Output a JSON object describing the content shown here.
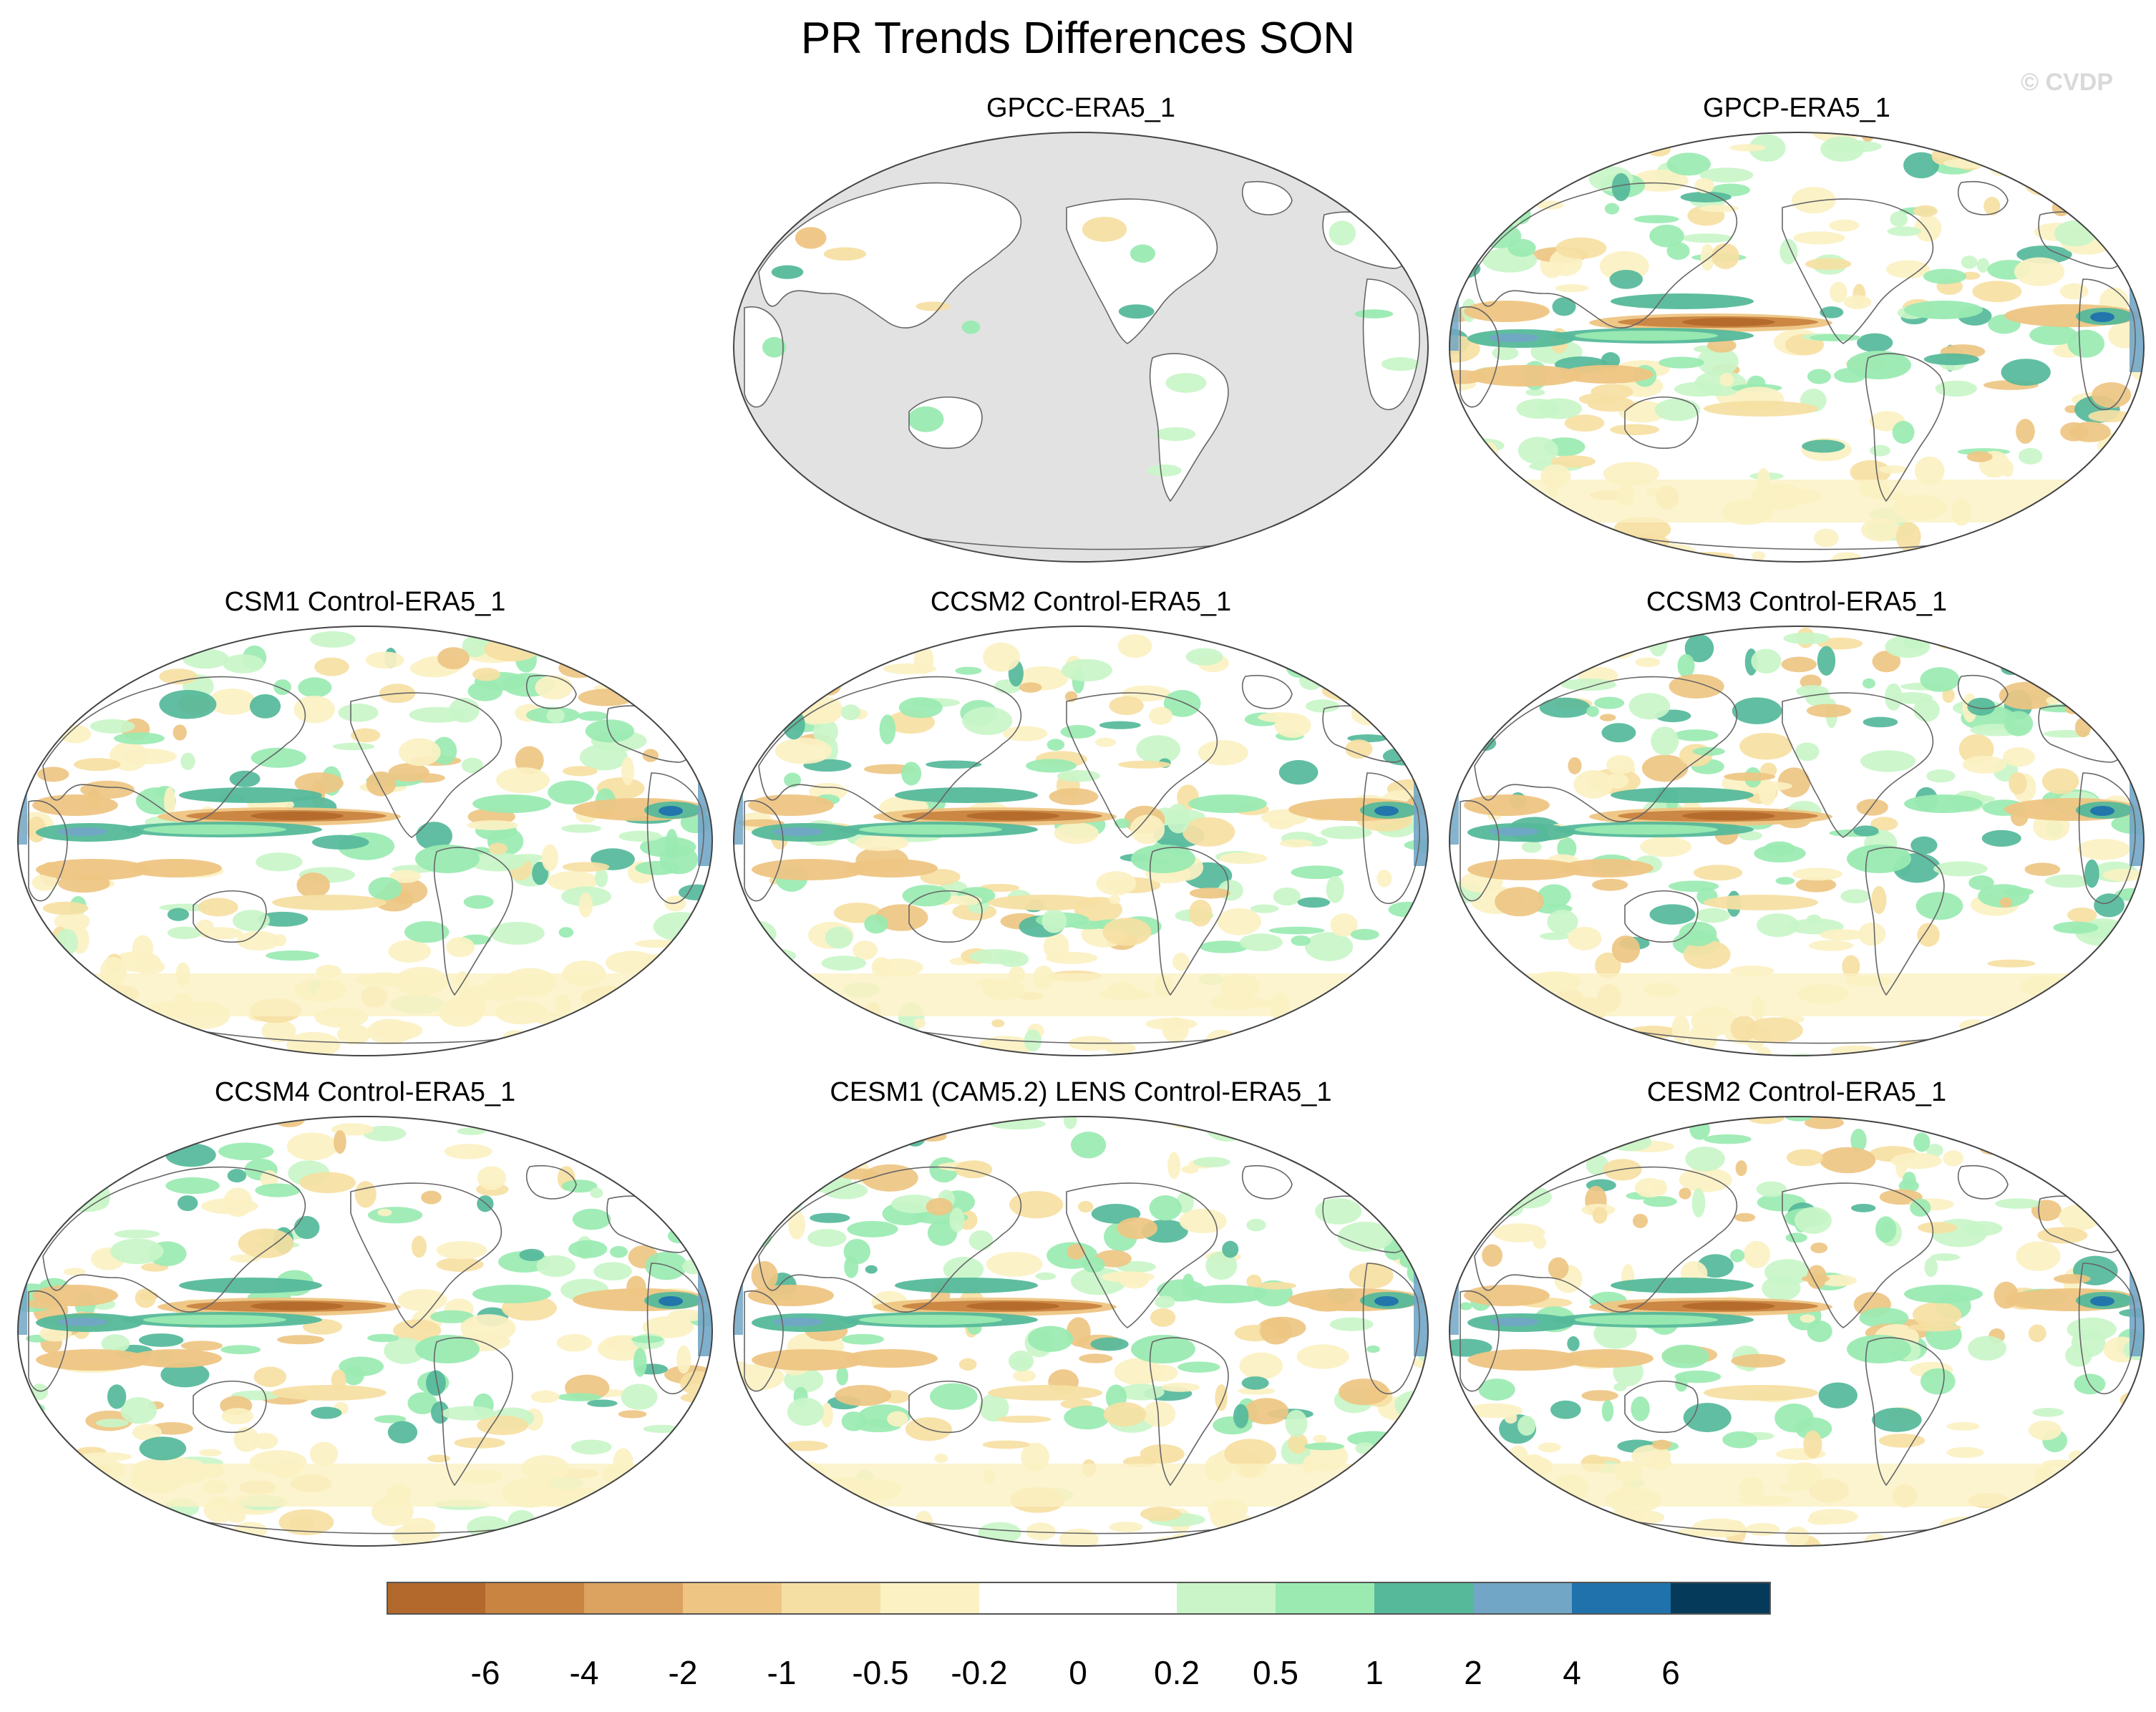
{
  "title": "PR Trends Differences SON",
  "credit": "© CVDP",
  "panels": [
    {
      "id": "gpcc",
      "title": "GPCC-ERA5_1",
      "row": 0,
      "col": 1,
      "land_only": true
    },
    {
      "id": "gpcp",
      "title": "GPCP-ERA5_1",
      "row": 0,
      "col": 2,
      "land_only": false
    },
    {
      "id": "csm1",
      "title": "CSM1 Control-ERA5_1",
      "row": 1,
      "col": 0,
      "land_only": false
    },
    {
      "id": "ccsm2",
      "title": "CCSM2 Control-ERA5_1",
      "row": 1,
      "col": 1,
      "land_only": false
    },
    {
      "id": "ccsm3",
      "title": "CCSM3 Control-ERA5_1",
      "row": 1,
      "col": 2,
      "land_only": false
    },
    {
      "id": "ccsm4",
      "title": "CCSM4 Control-ERA5_1",
      "row": 2,
      "col": 0,
      "land_only": false
    },
    {
      "id": "cesm1",
      "title": "CESM1 (CAM5.2) LENS Control-ERA5_1",
      "row": 2,
      "col": 1,
      "land_only": false
    },
    {
      "id": "cesm2",
      "title": "CESM2 Control-ERA5_1",
      "row": 2,
      "col": 2,
      "land_only": false
    }
  ],
  "colorbar": {
    "colors": [
      "#b2692b",
      "#c98441",
      "#dba35f",
      "#eec583",
      "#f6dfa3",
      "#fbf1c3",
      "#ffffff",
      "#ffffff",
      "#c9f5c8",
      "#9aeab2",
      "#55b99a",
      "#71a6c6",
      "#1f72ac",
      "#063a5b"
    ],
    "labels": [
      "-6",
      "-4",
      "-2",
      "-1",
      "-0.5",
      "-0.2",
      "0",
      "0.2",
      "0.5",
      "1",
      "2",
      "4",
      "6"
    ]
  },
  "palette": {
    "missing": "#e2e2e2",
    "coast": "#666666"
  }
}
